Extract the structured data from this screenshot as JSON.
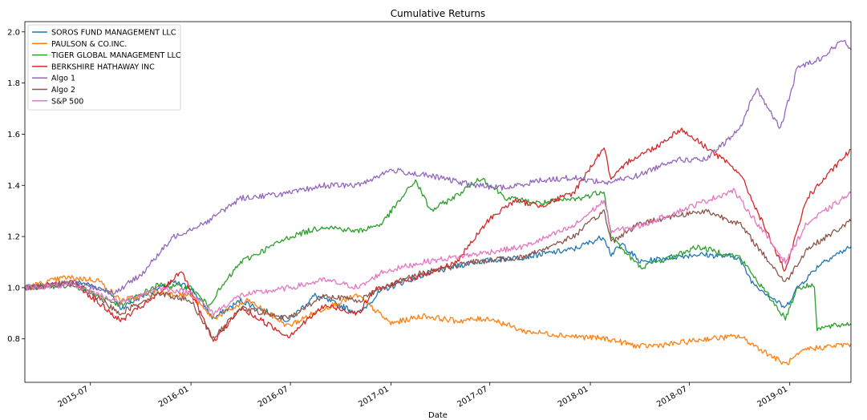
{
  "chart_data": {
    "type": "line",
    "title": "Cumulative Returns",
    "xlabel": "Date",
    "ylabel": "",
    "x_range": [
      "2015-03-03",
      "2019-04-23"
    ],
    "ylim": [
      0.63,
      2.04
    ],
    "y_ticks": [
      0.8,
      1.0,
      1.2,
      1.4,
      1.6,
      1.8,
      2.0
    ],
    "y_tick_labels": [
      "0.8",
      "1.0",
      "1.2",
      "1.4",
      "1.6",
      "1.8",
      "2.0"
    ],
    "x_ticks": [
      "2015-07-01",
      "2016-01-01",
      "2016-07-01",
      "2017-01-01",
      "2017-07-01",
      "2018-01-01",
      "2018-07-01",
      "2019-01-01"
    ],
    "x_tick_labels": [
      "2015-07",
      "2016-01",
      "2016-07",
      "2017-01",
      "2017-07",
      "2018-01",
      "2018-07",
      "2019-01"
    ],
    "grid": false,
    "legend_position": "top-left",
    "series": [
      {
        "name": "SOROS FUND MANAGEMENT LLC",
        "color": "#1f77b4",
        "points": [
          [
            "2015-03-03",
            1.0
          ],
          [
            "2015-06-15",
            1.02
          ],
          [
            "2015-08-01",
            0.99
          ],
          [
            "2015-08-25",
            0.92
          ],
          [
            "2015-10-15",
            0.98
          ],
          [
            "2015-12-01",
            1.02
          ],
          [
            "2016-01-01",
            1.0
          ],
          [
            "2016-02-11",
            0.88
          ],
          [
            "2016-04-01",
            0.95
          ],
          [
            "2016-06-27",
            0.87
          ],
          [
            "2016-08-15",
            0.97
          ],
          [
            "2016-11-04",
            0.9
          ],
          [
            "2016-12-15",
            0.99
          ],
          [
            "2017-03-01",
            1.05
          ],
          [
            "2017-06-01",
            1.1
          ],
          [
            "2017-09-01",
            1.12
          ],
          [
            "2017-12-01",
            1.15
          ],
          [
            "2018-01-26",
            1.2
          ],
          [
            "2018-02-08",
            1.13
          ],
          [
            "2018-03-01",
            1.17
          ],
          [
            "2018-04-02",
            1.1
          ],
          [
            "2018-06-01",
            1.12
          ],
          [
            "2018-07-15",
            1.13
          ],
          [
            "2018-09-28",
            1.12
          ],
          [
            "2018-10-25",
            1.02
          ],
          [
            "2018-12-24",
            0.92
          ],
          [
            "2019-01-15",
            1.0
          ],
          [
            "2019-03-01",
            1.1
          ],
          [
            "2019-04-23",
            1.16
          ]
        ]
      },
      {
        "name": "PAULSON & CO.INC.",
        "color": "#ff7f0e",
        "points": [
          [
            "2015-03-03",
            1.0
          ],
          [
            "2015-05-15",
            1.04
          ],
          [
            "2015-07-15",
            1.03
          ],
          [
            "2015-08-25",
            0.95
          ],
          [
            "2015-11-01",
            0.98
          ],
          [
            "2016-01-01",
            0.97
          ],
          [
            "2016-02-11",
            0.88
          ],
          [
            "2016-04-15",
            0.95
          ],
          [
            "2016-06-27",
            0.85
          ],
          [
            "2016-09-01",
            0.92
          ],
          [
            "2016-11-01",
            0.97
          ],
          [
            "2017-01-01",
            0.86
          ],
          [
            "2017-03-01",
            0.89
          ],
          [
            "2017-05-01",
            0.87
          ],
          [
            "2017-07-01",
            0.88
          ],
          [
            "2017-09-01",
            0.83
          ],
          [
            "2017-12-01",
            0.81
          ],
          [
            "2018-02-01",
            0.8
          ],
          [
            "2018-04-01",
            0.77
          ],
          [
            "2018-06-01",
            0.78
          ],
          [
            "2018-08-01",
            0.8
          ],
          [
            "2018-10-01",
            0.81
          ],
          [
            "2018-12-24",
            0.7
          ],
          [
            "2019-02-01",
            0.76
          ],
          [
            "2019-04-23",
            0.78
          ]
        ]
      },
      {
        "name": "TIGER GLOBAL MANAGEMENT LLC",
        "color": "#2ca02c",
        "points": [
          [
            "2015-03-03",
            1.0
          ],
          [
            "2015-06-01",
            1.01
          ],
          [
            "2015-08-25",
            0.93
          ],
          [
            "2015-11-01",
            1.01
          ],
          [
            "2016-01-01",
            1.0
          ],
          [
            "2016-02-01",
            0.93
          ],
          [
            "2016-04-01",
            1.1
          ],
          [
            "2016-07-01",
            1.2
          ],
          [
            "2016-09-01",
            1.24
          ],
          [
            "2016-11-01",
            1.22
          ],
          [
            "2016-12-15",
            1.25
          ],
          [
            "2017-02-15",
            1.42
          ],
          [
            "2017-03-15",
            1.3
          ],
          [
            "2017-05-01",
            1.36
          ],
          [
            "2017-06-15",
            1.43
          ],
          [
            "2017-08-01",
            1.35
          ],
          [
            "2017-10-01",
            1.33
          ],
          [
            "2017-12-15",
            1.35
          ],
          [
            "2018-01-26",
            1.38
          ],
          [
            "2018-02-08",
            1.2
          ],
          [
            "2018-03-01",
            1.15
          ],
          [
            "2018-04-02",
            1.08
          ],
          [
            "2018-06-01",
            1.12
          ],
          [
            "2018-07-15",
            1.16
          ],
          [
            "2018-10-01",
            1.12
          ],
          [
            "2018-12-24",
            0.88
          ],
          [
            "2019-01-15",
            1.0
          ],
          [
            "2019-02-15",
            1.01
          ],
          [
            "2019-02-20",
            0.84
          ],
          [
            "2019-04-23",
            0.86
          ]
        ]
      },
      {
        "name": "BERKSHIRE HATHAWAY INC",
        "color": "#d62728",
        "points": [
          [
            "2015-03-03",
            1.0
          ],
          [
            "2015-06-01",
            1.02
          ],
          [
            "2015-08-25",
            0.87
          ],
          [
            "2015-11-01",
            0.97
          ],
          [
            "2015-12-15",
            1.07
          ],
          [
            "2016-01-01",
            0.98
          ],
          [
            "2016-02-11",
            0.79
          ],
          [
            "2016-04-01",
            0.92
          ],
          [
            "2016-06-27",
            0.81
          ],
          [
            "2016-09-01",
            0.93
          ],
          [
            "2016-11-04",
            0.9
          ],
          [
            "2016-12-01",
            0.99
          ],
          [
            "2017-03-01",
            1.05
          ],
          [
            "2017-05-01",
            1.1
          ],
          [
            "2017-07-01",
            1.27
          ],
          [
            "2017-08-15",
            1.34
          ],
          [
            "2017-10-01",
            1.32
          ],
          [
            "2017-12-01",
            1.37
          ],
          [
            "2018-01-26",
            1.55
          ],
          [
            "2018-02-08",
            1.42
          ],
          [
            "2018-03-15",
            1.5
          ],
          [
            "2018-05-01",
            1.55
          ],
          [
            "2018-06-15",
            1.62
          ],
          [
            "2018-08-01",
            1.55
          ],
          [
            "2018-10-01",
            1.45
          ],
          [
            "2018-12-24",
            1.06
          ],
          [
            "2019-02-01",
            1.35
          ],
          [
            "2019-04-23",
            1.54
          ]
        ]
      },
      {
        "name": "Algo 1",
        "color": "#9467bd",
        "points": [
          [
            "2015-03-03",
            1.0
          ],
          [
            "2015-06-01",
            1.02
          ],
          [
            "2015-08-15",
            0.98
          ],
          [
            "2015-10-01",
            1.05
          ],
          [
            "2015-12-01",
            1.2
          ],
          [
            "2016-02-01",
            1.26
          ],
          [
            "2016-04-01",
            1.35
          ],
          [
            "2016-07-01",
            1.37
          ],
          [
            "2016-09-01",
            1.4
          ],
          [
            "2016-11-01",
            1.4
          ],
          [
            "2017-01-01",
            1.46
          ],
          [
            "2017-04-01",
            1.43
          ],
          [
            "2017-06-01",
            1.4
          ],
          [
            "2017-08-01",
            1.39
          ],
          [
            "2017-10-01",
            1.42
          ],
          [
            "2017-12-01",
            1.43
          ],
          [
            "2018-02-01",
            1.41
          ],
          [
            "2018-04-01",
            1.44
          ],
          [
            "2018-06-01",
            1.5
          ],
          [
            "2018-08-01",
            1.5
          ],
          [
            "2018-10-01",
            1.62
          ],
          [
            "2018-11-01",
            1.78
          ],
          [
            "2018-12-15",
            1.62
          ],
          [
            "2019-01-15",
            1.86
          ],
          [
            "2019-03-01",
            1.9
          ],
          [
            "2019-04-10",
            1.97
          ],
          [
            "2019-04-23",
            1.93
          ]
        ]
      },
      {
        "name": "Algo 2",
        "color": "#8c564b",
        "points": [
          [
            "2015-03-03",
            1.0
          ],
          [
            "2015-06-01",
            1.02
          ],
          [
            "2015-08-25",
            0.9
          ],
          [
            "2015-11-01",
            0.98
          ],
          [
            "2016-01-01",
            0.95
          ],
          [
            "2016-02-11",
            0.8
          ],
          [
            "2016-04-01",
            0.92
          ],
          [
            "2016-06-27",
            0.88
          ],
          [
            "2016-09-01",
            0.97
          ],
          [
            "2016-11-04",
            0.95
          ],
          [
            "2016-12-15",
            1.0
          ],
          [
            "2017-03-01",
            1.06
          ],
          [
            "2017-06-01",
            1.1
          ],
          [
            "2017-09-01",
            1.12
          ],
          [
            "2017-12-01",
            1.2
          ],
          [
            "2018-01-26",
            1.3
          ],
          [
            "2018-02-08",
            1.18
          ],
          [
            "2018-04-01",
            1.25
          ],
          [
            "2018-06-01",
            1.28
          ],
          [
            "2018-08-01",
            1.3
          ],
          [
            "2018-10-01",
            1.25
          ],
          [
            "2018-12-24",
            1.02
          ],
          [
            "2019-02-01",
            1.15
          ],
          [
            "2019-04-23",
            1.26
          ]
        ]
      },
      {
        "name": "S&P 500",
        "color": "#e377c2",
        "points": [
          [
            "2015-03-03",
            1.0
          ],
          [
            "2015-06-01",
            1.01
          ],
          [
            "2015-08-25",
            0.94
          ],
          [
            "2015-11-01",
            1.0
          ],
          [
            "2016-01-01",
            0.98
          ],
          [
            "2016-02-11",
            0.9
          ],
          [
            "2016-04-01",
            0.97
          ],
          [
            "2016-07-01",
            1.0
          ],
          [
            "2016-09-01",
            1.03
          ],
          [
            "2016-11-04",
            1.0
          ],
          [
            "2016-12-15",
            1.06
          ],
          [
            "2017-03-01",
            1.1
          ],
          [
            "2017-06-01",
            1.13
          ],
          [
            "2017-09-01",
            1.16
          ],
          [
            "2017-12-01",
            1.24
          ],
          [
            "2018-01-26",
            1.34
          ],
          [
            "2018-02-08",
            1.22
          ],
          [
            "2018-04-01",
            1.24
          ],
          [
            "2018-06-01",
            1.29
          ],
          [
            "2018-08-01",
            1.34
          ],
          [
            "2018-09-20",
            1.38
          ],
          [
            "2018-12-24",
            1.1
          ],
          [
            "2019-02-01",
            1.25
          ],
          [
            "2019-04-23",
            1.37
          ]
        ]
      }
    ]
  }
}
